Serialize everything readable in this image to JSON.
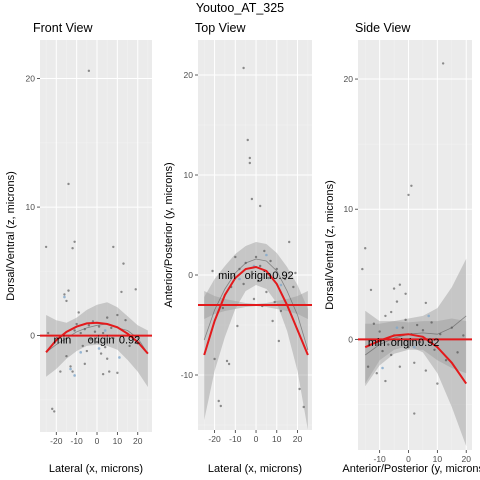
{
  "figure": {
    "title": "Youtoo_AT_325",
    "colors": {
      "panel_bg": "#ebebeb",
      "grid_major": "#ffffff",
      "grid_minor": "#f3f3f3",
      "fit_line": "#e31a1c",
      "band_outer": "#9a9a9a",
      "band_inner": "#6e6e6e",
      "points_dark": "#3a3a3a",
      "points_light": "#7fa8cc"
    }
  },
  "chart_data": [
    {
      "type": "scatter",
      "title": "Front View",
      "xlabel": "Lateral (x, microns)",
      "ylabel": "Dorsal/Ventral (z, microns)",
      "xlim": [
        -28,
        27
      ],
      "ylim": [
        -7.5,
        23
      ],
      "xticks": [
        -20,
        -10,
        0,
        10,
        20
      ],
      "xtick_labels": [
        "-20",
        "-10",
        "0",
        "10",
        "20"
      ],
      "yticks": [
        0,
        10,
        20
      ],
      "ytick_labels": [
        "0",
        "10",
        "20"
      ],
      "grid": true,
      "points": [
        [
          -16,
          3.2
        ],
        [
          -15,
          2.7
        ],
        [
          -14,
          3.5
        ],
        [
          -15,
          -1.6
        ],
        [
          -13,
          -2.4
        ],
        [
          -12,
          -2.8
        ],
        [
          -11,
          0.4
        ],
        [
          -10,
          0.9
        ],
        [
          -9,
          1.8
        ],
        [
          -8,
          0.2
        ],
        [
          -7,
          -0.8
        ],
        [
          -6,
          0.5
        ],
        [
          -5,
          -1.2
        ],
        [
          -4,
          0.8
        ],
        [
          -3,
          -0.3
        ],
        [
          -2,
          1.1
        ],
        [
          -1,
          0.3
        ],
        [
          0,
          -0.5
        ],
        [
          1,
          0.7
        ],
        [
          2,
          -1.4
        ],
        [
          3,
          0.2
        ],
        [
          4,
          -0.9
        ],
        [
          5,
          1.4
        ],
        [
          6,
          -2.8
        ],
        [
          7,
          0.6
        ],
        [
          8,
          -0.2
        ],
        [
          10,
          1.6
        ],
        [
          12,
          3.4
        ],
        [
          14,
          1.2
        ],
        [
          16,
          -0.8
        ],
        [
          -22,
          -5.7
        ],
        [
          -21,
          -5.9
        ],
        [
          -25,
          6.9
        ],
        [
          -12,
          6.8
        ],
        [
          -11,
          7.3
        ],
        [
          -4,
          20.6
        ],
        [
          -14,
          11.8
        ],
        [
          19,
          3.6
        ],
        [
          20,
          -0.6
        ],
        [
          -18,
          -2.8
        ],
        [
          3,
          -3.0
        ],
        [
          5,
          -1.8
        ],
        [
          10,
          -2.9
        ],
        [
          -6,
          -2.2
        ],
        [
          8,
          6.9
        ],
        [
          13,
          5.6
        ],
        [
          -24,
          0.2
        ]
      ],
      "light_points": [
        [
          -16,
          3.0
        ],
        [
          -13,
          -2.6
        ],
        [
          -11,
          -3.1
        ],
        [
          -8,
          -1.3
        ],
        [
          -2,
          1.0
        ],
        [
          1,
          -1.0
        ],
        [
          4,
          0.4
        ],
        [
          11,
          -1.7
        ]
      ],
      "series": [
        {
          "name": "",
          "kind": "smooth",
          "x": [
            -25,
            -20,
            -15,
            -10,
            -5,
            0,
            5,
            10,
            15,
            20,
            25
          ],
          "y": [
            -1.3,
            -0.7,
            -0.2,
            0.3,
            0.6,
            0.8,
            0.9,
            0.6,
            0.4,
            -0.2,
            -1.4
          ],
          "band_lower": [
            -3.2,
            -2.6,
            -1.8,
            -1.2,
            -0.8,
            -0.7,
            -0.8,
            -1.1,
            -1.9,
            -2.8,
            -4.0
          ],
          "band_upper": [
            1.6,
            1.2,
            1.0,
            1.4,
            2.0,
            2.4,
            2.6,
            2.2,
            1.5,
            0.8,
            0.4
          ]
        },
        {
          "name": "",
          "kind": "fit",
          "x": [
            -25,
            -20,
            -15,
            -10,
            -5,
            0,
            5,
            10,
            15,
            20,
            25
          ],
          "y": [
            -1.3,
            -0.35,
            0.3,
            0.7,
            0.95,
            1.0,
            0.9,
            0.65,
            0.15,
            -0.5,
            -1.4
          ]
        },
        {
          "name": "",
          "kind": "hline",
          "y": 0
        }
      ],
      "annotations": [
        {
          "text": "min",
          "x": -17,
          "y": -0.3,
          "anchor": "middle"
        },
        {
          "text": "origin",
          "x": 2,
          "y": -0.3,
          "anchor": "middle"
        },
        {
          "text": "0.92",
          "x": 16,
          "y": -0.3,
          "anchor": "middle"
        }
      ]
    },
    {
      "type": "scatter",
      "title": "Top View",
      "xlabel": "Lateral (x, microns)",
      "ylabel": "Anterior/Posterior (y, microns)",
      "xlim": [
        -28,
        27
      ],
      "ylim": [
        -15.5,
        23.5
      ],
      "xticks": [
        -20,
        -10,
        0,
        10,
        20
      ],
      "xtick_labels": [
        "-20",
        "-10",
        "0",
        "10",
        "20"
      ],
      "yticks": [
        -10,
        0,
        10,
        20
      ],
      "ytick_labels": [
        "-10",
        "0",
        "10",
        "20"
      ],
      "grid": true,
      "points": [
        [
          -12,
          -1.2
        ],
        [
          -10,
          1.8
        ],
        [
          -8,
          0.6
        ],
        [
          -6,
          -0.9
        ],
        [
          -5,
          1.2
        ],
        [
          -4,
          13.5
        ],
        [
          -3,
          11.2
        ],
        [
          -2,
          0.3
        ],
        [
          -1,
          -2.4
        ],
        [
          0,
          1.8
        ],
        [
          1,
          -0.6
        ],
        [
          2,
          0.9
        ],
        [
          3,
          -3.1
        ],
        [
          4,
          2.4
        ],
        [
          5,
          -1.7
        ],
        [
          6,
          -0.3
        ],
        [
          7,
          1.4
        ],
        [
          8,
          -4.6
        ],
        [
          9,
          -2.7
        ],
        [
          10,
          0.6
        ],
        [
          12,
          -3.6
        ],
        [
          14,
          -0.4
        ],
        [
          16,
          3.3
        ],
        [
          18,
          -1.2
        ],
        [
          -14,
          -8.6
        ],
        [
          -13,
          -8.9
        ],
        [
          -18,
          -12.6
        ],
        [
          -17,
          -13.1
        ],
        [
          -20,
          -8.4
        ],
        [
          -6,
          20.7
        ],
        [
          -3,
          11.7
        ],
        [
          21,
          -11.4
        ],
        [
          23,
          -13.2
        ],
        [
          -16,
          -3.3
        ],
        [
          -9,
          -5.1
        ],
        [
          11,
          -6.6
        ],
        [
          19,
          0.2
        ],
        [
          -21,
          0.4
        ],
        [
          2,
          6.9
        ],
        [
          -2,
          7.6
        ]
      ],
      "light_points": [
        [
          -8,
          -0.4
        ],
        [
          -1,
          0.9
        ],
        [
          5,
          2.0
        ],
        [
          12,
          -1.0
        ]
      ],
      "series": [
        {
          "name": "",
          "kind": "band",
          "x": [
            -25,
            -20,
            -15,
            -10,
            -5,
            0,
            5,
            10,
            15,
            20,
            25
          ],
          "band_lower": [
            -4.4,
            -3.9,
            -3.6,
            -3.4,
            -3.2,
            -3.1,
            -3.2,
            -3.4,
            -3.6,
            -3.9,
            -4.4
          ],
          "band_upper": [
            -1.6,
            -2.1,
            -2.4,
            -2.6,
            -2.8,
            -2.9,
            -2.8,
            -2.6,
            -2.4,
            -2.1,
            -1.6
          ]
        },
        {
          "name": "",
          "kind": "smooth",
          "x": [
            -25,
            -20,
            -15,
            -10,
            -5,
            0,
            5,
            10,
            15,
            20,
            25
          ],
          "y": [
            -6.5,
            -3.5,
            -1.4,
            0.2,
            1.2,
            1.6,
            1.4,
            0.4,
            -1.6,
            -4.0,
            -7.5
          ],
          "band_lower": [
            -14.5,
            -9.6,
            -6.2,
            -3.4,
            -1.6,
            -1.0,
            -1.4,
            -2.8,
            -5.6,
            -9.6,
            -15.5
          ],
          "band_upper": [
            -2.2,
            -0.4,
            0.9,
            2.1,
            2.9,
            3.3,
            3.1,
            2.2,
            0.8,
            -1.0,
            -3.4
          ]
        },
        {
          "name": "",
          "kind": "fit",
          "x": [
            -25,
            -20,
            -15,
            -10,
            -5,
            0,
            5,
            10,
            15,
            20,
            25
          ],
          "y": [
            -8.0,
            -4.6,
            -2.0,
            -0.3,
            0.6,
            0.8,
            0.4,
            -0.9,
            -3.0,
            -5.5,
            -8.0
          ]
        },
        {
          "name": "",
          "kind": "hline",
          "y": -3.0
        }
      ],
      "annotations": [
        {
          "text": "min",
          "x": -14,
          "y": 0.0,
          "anchor": "middle"
        },
        {
          "text": "origin",
          "x": 1,
          "y": 0.0,
          "anchor": "middle"
        },
        {
          "text": "0.92",
          "x": 13,
          "y": 0.0,
          "anchor": "middle"
        }
      ]
    },
    {
      "type": "scatter",
      "title": "Side View",
      "xlabel": "Anterior/Posterior (y, microns)",
      "ylabel": "Dorsal/Ventral (z, microns)",
      "xlim": [
        -17.5,
        22
      ],
      "ylim": [
        -8.5,
        23
      ],
      "xticks": [
        -10,
        0,
        10,
        20
      ],
      "xtick_labels": [
        "-10",
        "0",
        "10",
        "20"
      ],
      "yticks": [
        0,
        10,
        20
      ],
      "ytick_labels": [
        "0",
        "10",
        "20"
      ],
      "grid": true,
      "points": [
        [
          -12,
          1.2
        ],
        [
          -10,
          0.6
        ],
        [
          -9,
          -0.9
        ],
        [
          -8,
          1.8
        ],
        [
          -7,
          -0.4
        ],
        [
          -6,
          -1.2
        ],
        [
          -5,
          0.3
        ],
        [
          -4,
          2.9
        ],
        [
          -3,
          -2.1
        ],
        [
          -2,
          0.9
        ],
        [
          -1,
          1.5
        ],
        [
          0,
          -0.6
        ],
        [
          1,
          0.4
        ],
        [
          2,
          -1.8
        ],
        [
          3,
          1.1
        ],
        [
          4,
          -0.2
        ],
        [
          5,
          0.7
        ],
        [
          6,
          -2.4
        ],
        [
          8,
          1.3
        ],
        [
          9,
          -0.8
        ],
        [
          11,
          0.4
        ],
        [
          13,
          -1.6
        ],
        [
          15,
          0.9
        ],
        [
          -14,
          -2.1
        ],
        [
          -13,
          3.8
        ],
        [
          -15,
          7.0
        ],
        [
          0,
          11.1
        ],
        [
          1,
          11.8
        ],
        [
          -3,
          4.2
        ],
        [
          -1,
          3.5
        ],
        [
          12,
          21.2
        ],
        [
          -16,
          5.4
        ],
        [
          17,
          -1.0
        ],
        [
          19,
          0.3
        ],
        [
          -8,
          -3.2
        ],
        [
          2,
          -5.7
        ],
        [
          -11,
          -2.6
        ],
        [
          6,
          2.8
        ],
        [
          10,
          -3.4
        ],
        [
          -5,
          3.9
        ],
        [
          -6,
          2.1
        ]
      ],
      "light_points": [
        [
          -9,
          -2.2
        ],
        [
          -4,
          0.9
        ],
        [
          2,
          -0.6
        ],
        [
          7,
          1.8
        ]
      ],
      "series": [
        {
          "name": "",
          "kind": "smooth",
          "x": [
            -15,
            -10,
            -5,
            0,
            5,
            10,
            15,
            20
          ],
          "y": [
            -1.2,
            -0.4,
            0.1,
            0.4,
            0.5,
            0.4,
            0.9,
            1.8
          ],
          "band_lower": [
            -3.6,
            -2.0,
            -1.1,
            -0.8,
            -0.8,
            -1.6,
            -2.2,
            -2.6
          ],
          "band_upper": [
            1.2,
            1.2,
            1.4,
            1.6,
            1.8,
            2.4,
            4.0,
            6.2
          ]
        },
        {
          "name": "",
          "kind": "fit",
          "x": [
            -15,
            -10,
            -5,
            0,
            5,
            10,
            15,
            20
          ],
          "y": [
            -0.6,
            -0.1,
            0.3,
            0.4,
            0.2,
            -0.6,
            -1.8,
            -3.4
          ],
          "band_lower": [
            -3.4,
            -1.6,
            -0.8,
            -0.5,
            -1.0,
            -2.6,
            -5.2,
            -8.2
          ],
          "band_upper": [
            2.2,
            1.4,
            1.4,
            1.3,
            1.4,
            1.4,
            1.6,
            1.4
          ]
        },
        {
          "name": "",
          "kind": "hline",
          "y": 0
        }
      ],
      "annotations": [
        {
          "text": "min",
          "x": -11,
          "y": -0.2,
          "anchor": "middle"
        },
        {
          "text": "origin",
          "x": -1.5,
          "y": -0.2,
          "anchor": "middle"
        },
        {
          "text": "0.92",
          "x": 7,
          "y": -0.2,
          "anchor": "middle"
        }
      ]
    }
  ]
}
